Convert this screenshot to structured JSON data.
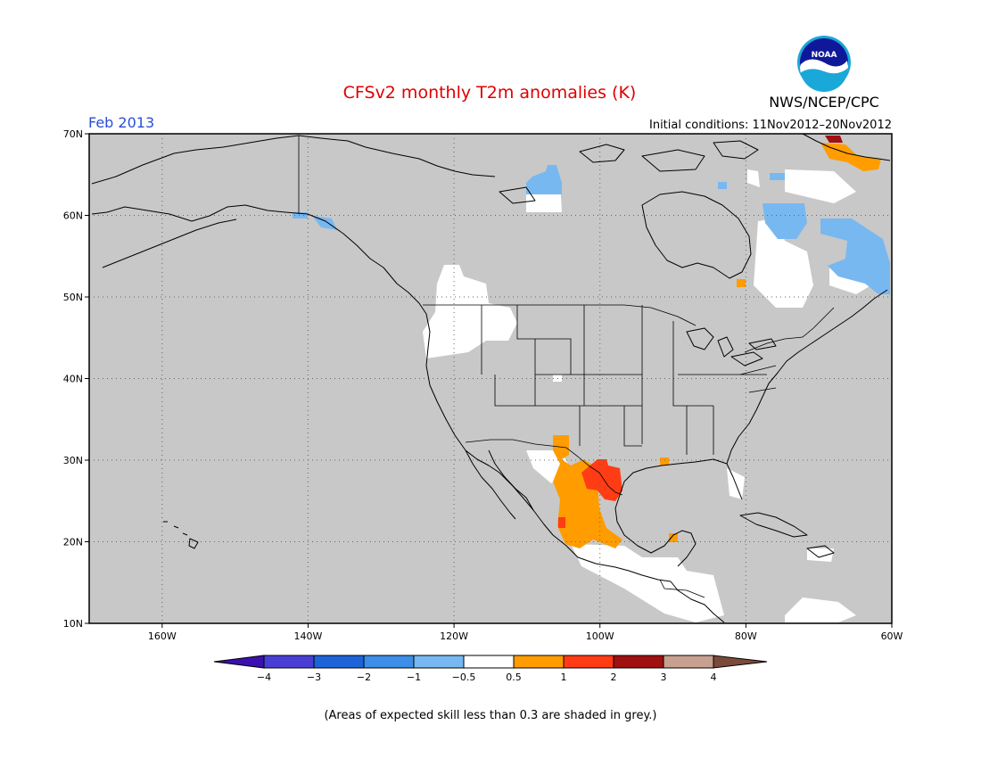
{
  "title": "CFSv2 monthly T2m anomalies (K)",
  "period": "Feb 2013",
  "initial_conditions": "Initial conditions: 11Nov2012–20Nov2012",
  "organization": "NWS/NCEP/CPC",
  "logo_text": "NOAA",
  "footer": "(Areas of expected skill less than 0.3 are shaded in grey.)",
  "map": {
    "lon_range": [
      -170,
      -60
    ],
    "lat_range": [
      10,
      70
    ],
    "lon_ticks": [
      {
        "lon": -160,
        "label": "160W"
      },
      {
        "lon": -140,
        "label": "140W"
      },
      {
        "lon": -120,
        "label": "120W"
      },
      {
        "lon": -100,
        "label": "100W"
      },
      {
        "lon": -80,
        "label": "80W"
      },
      {
        "lon": -60,
        "label": "60W"
      }
    ],
    "lat_ticks": [
      {
        "lat": 70,
        "label": "70N"
      },
      {
        "lat": 60,
        "label": "60N"
      },
      {
        "lat": 50,
        "label": "50N"
      },
      {
        "lat": 40,
        "label": "40N"
      },
      {
        "lat": 30,
        "label": "30N"
      },
      {
        "lat": 20,
        "label": "20N"
      },
      {
        "lat": 10,
        "label": "10N"
      }
    ],
    "background_color": "#c8c8c8"
  },
  "colorbar": {
    "labels": [
      "−4",
      "−3",
      "−2",
      "−1",
      "−0.5",
      "0.5",
      "1",
      "2",
      "3",
      "4"
    ],
    "colors": [
      "#3a10b0",
      "#4a3fd4",
      "#1e64d8",
      "#3c8ee8",
      "#78b8f0",
      "#ffffff",
      "#ff9c00",
      "#ff3c14",
      "#a01010",
      "#c8a090",
      "#7a4a3a"
    ]
  }
}
